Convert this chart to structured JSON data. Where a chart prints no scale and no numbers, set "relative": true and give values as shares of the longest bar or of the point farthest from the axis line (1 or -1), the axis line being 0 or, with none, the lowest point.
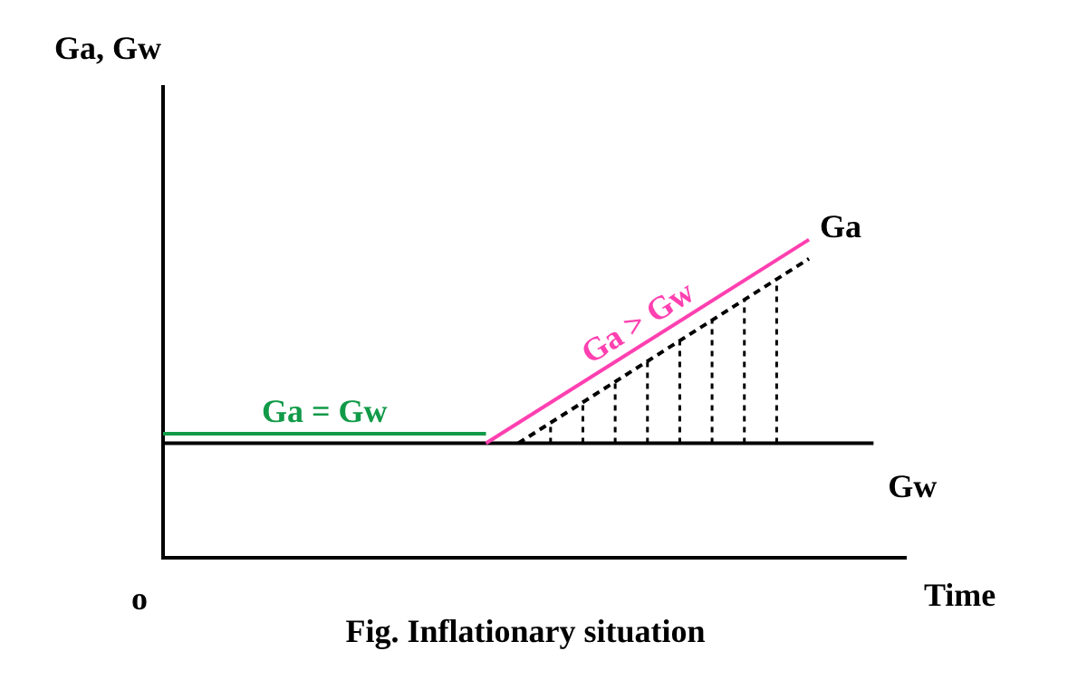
{
  "chart_data": {
    "type": "line",
    "relative": true,
    "title": "Fig. Inflationary situation",
    "xlabel": "Time",
    "grid": false,
    "legend": false,
    "marker": "none",
    "categories": [
      null,
      null,
      null,
      null,
      null,
      null,
      null,
      null,
      null,
      null,
      null,
      null,
      null,
      null,
      null,
      null,
      null,
      null,
      null,
      null,
      null,
      null,
      null,
      null
    ],
    "series": [
      {
        "color": "#119a48",
        "values": [
          0.39,
          null,
          null,
          null,
          null,
          null,
          null,
          null,
          null,
          null,
          0.39,
          null,
          null,
          null,
          null,
          null,
          null,
          null,
          null,
          null,
          null,
          null,
          null,
          null
        ]
      },
      {
        "name": "Ga",
        "color": "#ff40b0",
        "values": [
          null,
          null,
          null,
          null,
          null,
          null,
          null,
          null,
          null,
          null,
          0.36,
          null,
          null,
          null,
          null,
          null,
          null,
          null,
          null,
          null,
          1.0,
          null,
          null,
          null
        ]
      },
      {
        "name": "Gw",
        "color": "#000000",
        "values": [
          0.36,
          null,
          null,
          null,
          null,
          null,
          null,
          null,
          null,
          null,
          null,
          null,
          null,
          null,
          null,
          null,
          null,
          null,
          null,
          null,
          null,
          null,
          0.36,
          null
        ]
      },
      {
        "color": "#000000",
        "line_style": "dashed",
        "values": [
          null,
          null,
          null,
          null,
          null,
          null,
          null,
          null,
          null,
          null,
          null,
          0.36,
          null,
          null,
          null,
          null,
          null,
          null,
          null,
          null,
          0.94,
          null,
          null,
          null
        ]
      }
    ],
    "annotations": [
      "Ga, Gw",
      "o",
      "Ga = Gw",
      "Ga > Gw"
    ]
  }
}
